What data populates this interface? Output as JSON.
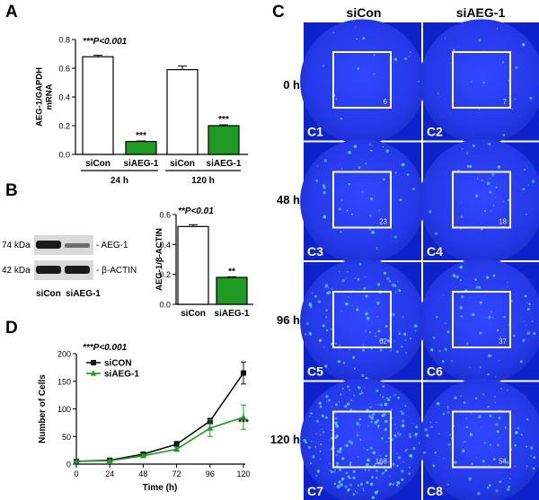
{
  "panels": {
    "a": {
      "letter": "A"
    },
    "b": {
      "letter": "B"
    },
    "c": {
      "letter": "C"
    },
    "d": {
      "letter": "D"
    }
  },
  "chart_data": [
    {
      "panel": "A",
      "type": "bar",
      "ylabel": "AEG-1/GAPDH\nmRNA",
      "ylim": [
        0,
        0.8
      ],
      "yticks": [
        0.0,
        0.2,
        0.4,
        0.6,
        0.8
      ],
      "annotation": "***P<0.001",
      "categories": [
        "siCon",
        "siAEG-1",
        "siCon",
        "siAEG-1"
      ],
      "groups": [
        "24 h",
        "120 h"
      ],
      "values": [
        0.68,
        0.09,
        0.59,
        0.2
      ],
      "errors": [
        0.01,
        0.004,
        0.025,
        0.006
      ],
      "fills": [
        "#ffffff",
        "#1f9a24",
        "#ffffff",
        "#1f9a24"
      ],
      "significance": [
        "",
        "***",
        "",
        "***"
      ]
    },
    {
      "panel": "B",
      "type": "bar",
      "ylabel": "AEG-1/β-ACTIN",
      "ylim": [
        0,
        0.6
      ],
      "yticks": [
        0.0,
        0.2,
        0.4,
        0.6
      ],
      "annotation": "**P<0.01",
      "categories": [
        "siCon",
        "siAEG-1"
      ],
      "values": [
        0.52,
        0.18
      ],
      "errors": [
        0.012,
        0.004
      ],
      "fills": [
        "#ffffff",
        "#1f9a24"
      ],
      "significance": [
        "",
        "**"
      ]
    },
    {
      "panel": "D",
      "type": "line",
      "xlabel": "Time (h)",
      "ylabel": "Number of Cells",
      "xlim": [
        0,
        120
      ],
      "ylim": [
        0,
        200
      ],
      "xticks": [
        0,
        24,
        48,
        72,
        96,
        120
      ],
      "yticks": [
        0,
        50,
        100,
        150,
        200
      ],
      "annotation": "***P<0.001",
      "legend": "top-left",
      "x": [
        0,
        24,
        48,
        72,
        96,
        120
      ],
      "series": [
        {
          "name": "siCON",
          "color": "#111111",
          "marker": "square",
          "values": [
            5,
            7,
            18,
            36,
            78,
            165
          ],
          "errors": [
            1,
            1,
            3,
            5,
            5,
            20
          ]
        },
        {
          "name": "siAEG-1",
          "color": "#1f9a24",
          "marker": "triangle",
          "values": [
            5,
            6,
            15,
            27,
            65,
            85
          ],
          "errors": [
            1,
            1,
            3,
            4,
            15,
            22
          ]
        }
      ],
      "point_labels": [
        {
          "x": 120,
          "text": "***"
        }
      ]
    }
  ],
  "western": {
    "markers": [
      "74 kDa",
      "42 kDa"
    ],
    "bands": [
      "- AEG-1",
      "- β-ACTIN"
    ],
    "lanes": [
      "siCon",
      "siAEG-1"
    ]
  },
  "micrographs": {
    "columns": [
      "siCon",
      "siAEG-1"
    ],
    "rows": [
      "0 h",
      "48 h",
      "96 h",
      "120 h"
    ],
    "tiles": [
      {
        "label": "C1",
        "count": "6"
      },
      {
        "label": "C2",
        "count": "7"
      },
      {
        "label": "C3",
        "count": "23"
      },
      {
        "label": "C4",
        "count": "18"
      },
      {
        "label": "C5",
        "count": "62"
      },
      {
        "label": "C6",
        "count": "37"
      },
      {
        "label": "C7",
        "count": "168"
      },
      {
        "label": "C8",
        "count": "54"
      }
    ],
    "colors": {
      "background": "#0e22cc",
      "dish": "#2a3cf2",
      "cells": "#55c8ff",
      "box": "#ffffff"
    }
  }
}
